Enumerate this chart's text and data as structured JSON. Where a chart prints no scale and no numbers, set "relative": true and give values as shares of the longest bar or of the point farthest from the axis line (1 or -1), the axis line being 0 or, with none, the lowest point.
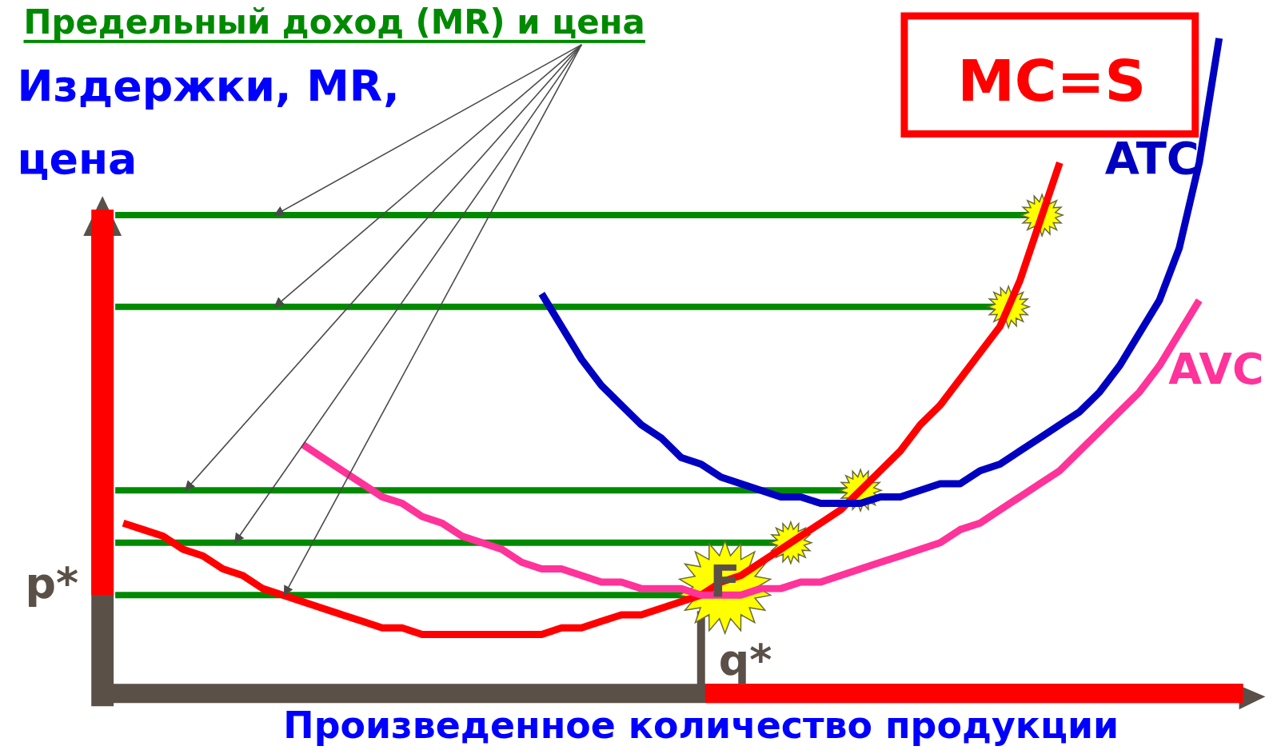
{
  "chart_data": {
    "type": "line",
    "relative": true,
    "title": "Предельный доход (MR) и цена",
    "ylabel": "Издержки, MR, цена",
    "xlabel": "Произведенное количество продукции",
    "annotations": [
      "F",
      "p*",
      "q*"
    ],
    "categories": [
      null,
      null,
      null,
      null,
      null,
      null,
      null,
      null,
      null,
      null,
      null,
      null,
      null,
      null,
      null,
      null,
      null,
      null,
      null,
      null,
      null,
      null,
      null,
      null,
      null,
      null,
      null,
      null,
      null,
      null,
      null,
      null,
      null,
      null,
      null,
      null,
      null,
      null,
      null,
      null,
      null,
      null,
      null,
      null,
      null,
      null,
      null,
      null,
      null,
      null,
      null,
      null,
      null,
      null,
      null,
      null,
      null,
      null,
      null
    ],
    "series": [
      {
        "name": "MC=S",
        "color": "#ff0000",
        "values": [
          null,
          0.26,
          0.25,
          0.24,
          0.22,
          0.21,
          0.19,
          0.18,
          0.16,
          0.15,
          0.14,
          0.13,
          0.12,
          0.11,
          0.1,
          0.1,
          0.09,
          0.09,
          0.09,
          0.09,
          0.09,
          0.09,
          0.09,
          0.1,
          0.1,
          0.11,
          0.12,
          0.12,
          0.13,
          0.14,
          0.15,
          0.17,
          0.18,
          0.2,
          0.22,
          0.24,
          0.26,
          0.28,
          0.31,
          0.34,
          0.37,
          0.41,
          0.44,
          0.48,
          0.52,
          0.56,
          0.63,
          0.72,
          0.81,
          null,
          null,
          null,
          null,
          null,
          null,
          null,
          null,
          null,
          null
        ]
      },
      {
        "name": "ATC",
        "color": "#0000c0",
        "values": [
          null,
          null,
          null,
          null,
          null,
          null,
          null,
          null,
          null,
          null,
          null,
          null,
          null,
          null,
          null,
          null,
          null,
          null,
          null,
          null,
          null,
          null,
          0.61,
          0.56,
          0.51,
          0.47,
          0.44,
          0.41,
          0.39,
          0.36,
          0.35,
          0.33,
          0.32,
          0.31,
          0.3,
          0.3,
          0.29,
          0.29,
          0.29,
          0.3,
          0.3,
          0.31,
          0.32,
          0.32,
          0.34,
          0.35,
          0.37,
          0.39,
          0.41,
          0.43,
          0.46,
          0.5,
          0.55,
          0.6,
          0.68,
          0.81,
          1,
          null,
          null
        ]
      },
      {
        "name": "AVC",
        "color": "#ff3399",
        "values": [
          null,
          null,
          null,
          null,
          null,
          null,
          null,
          null,
          null,
          null,
          0.38,
          0.36,
          0.34,
          0.32,
          0.3,
          0.29,
          0.27,
          0.26,
          0.24,
          0.23,
          0.22,
          0.2,
          0.19,
          0.19,
          0.18,
          0.17,
          0.17,
          0.16,
          0.16,
          0.16,
          0.15,
          0.15,
          0.15,
          0.16,
          0.16,
          0.17,
          0.17,
          0.18,
          0.19,
          0.2,
          0.21,
          0.22,
          0.23,
          0.25,
          0.26,
          0.28,
          0.3,
          0.32,
          0.34,
          0.37,
          0.4,
          0.43,
          0.46,
          0.5,
          0.55,
          0.6,
          null,
          null,
          null
        ]
      }
    ],
    "ref_lines": [
      {
        "axis": "y",
        "value": 0.73,
        "color": "#008a00"
      },
      {
        "axis": "y",
        "value": 0.59,
        "color": "#008a00"
      },
      {
        "axis": "y",
        "value": 0.31,
        "color": "#008a00"
      },
      {
        "axis": "y",
        "value": 0.23,
        "color": "#008a00"
      },
      {
        "axis": "y",
        "value": 0.15,
        "color": "#008a00"
      }
    ]
  }
}
